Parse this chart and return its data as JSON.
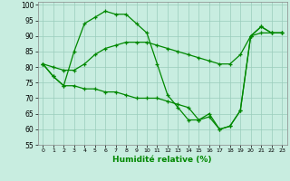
{
  "xlabel": "Humidité relative (%)",
  "xlim": [
    -0.5,
    23.5
  ],
  "ylim": [
    55,
    101
  ],
  "yticks": [
    55,
    60,
    65,
    70,
    75,
    80,
    85,
    90,
    95,
    100
  ],
  "xticks": [
    0,
    1,
    2,
    3,
    4,
    5,
    6,
    7,
    8,
    9,
    10,
    11,
    12,
    13,
    14,
    15,
    16,
    17,
    18,
    19,
    20,
    21,
    22,
    23
  ],
  "bg_color": "#c8ede0",
  "grid_color": "#99ccbb",
  "line_color": "#008800",
  "curve1_x": [
    0,
    1,
    2,
    3,
    4,
    5,
    6,
    7,
    8,
    9,
    10,
    11,
    12,
    13,
    14,
    15,
    16,
    17,
    18,
    19,
    20,
    21,
    22,
    23
  ],
  "curve1_y": [
    81,
    77,
    74,
    85,
    94,
    96,
    98,
    97,
    97,
    94,
    91,
    81,
    71,
    67,
    63,
    63,
    65,
    60,
    61,
    66,
    90,
    93,
    91,
    91
  ],
  "curve2_x": [
    0,
    1,
    2,
    3,
    4,
    5,
    6,
    7,
    8,
    9,
    10,
    11,
    12,
    13,
    14,
    15,
    16,
    17,
    18,
    19,
    20,
    21,
    22,
    23
  ],
  "curve2_y": [
    81,
    80,
    79,
    79,
    81,
    84,
    86,
    87,
    88,
    88,
    88,
    87,
    86,
    85,
    84,
    83,
    82,
    81,
    81,
    84,
    90,
    91,
    91,
    91
  ],
  "curve3_x": [
    0,
    1,
    2,
    3,
    4,
    5,
    6,
    7,
    8,
    9,
    10,
    11,
    12,
    13,
    14,
    15,
    16,
    17,
    18,
    19,
    20,
    21,
    22,
    23
  ],
  "curve3_y": [
    81,
    77,
    74,
    74,
    73,
    73,
    72,
    72,
    71,
    70,
    70,
    70,
    69,
    68,
    67,
    63,
    64,
    60,
    61,
    66,
    90,
    93,
    91,
    91
  ]
}
